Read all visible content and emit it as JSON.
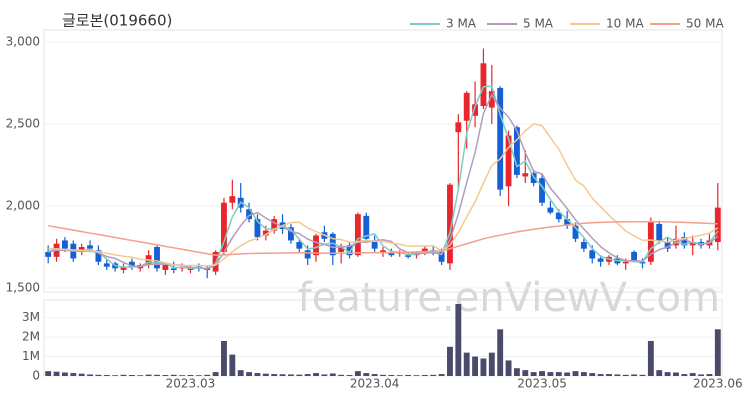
{
  "chart_data": {
    "type": "candlestick",
    "title": "글로본(019660)",
    "watermark": "feature.enViewV.com",
    "categories": [
      null,
      null,
      null,
      null,
      null,
      null,
      null,
      null,
      null,
      null,
      null,
      null,
      null,
      null,
      null,
      null,
      null,
      "2023.03",
      null,
      null,
      null,
      null,
      null,
      null,
      null,
      null,
      null,
      null,
      null,
      null,
      null,
      null,
      null,
      null,
      null,
      null,
      null,
      null,
      null,
      "2023.04",
      null,
      null,
      null,
      null,
      null,
      null,
      null,
      null,
      null,
      null,
      null,
      null,
      null,
      null,
      null,
      null,
      null,
      null,
      null,
      "2023.05",
      null,
      null,
      null,
      null,
      null,
      null,
      null,
      null,
      null,
      null,
      null,
      null,
      null,
      null,
      null,
      null,
      null,
      null,
      null,
      null,
      "2023.06"
    ],
    "open": [
      1720,
      1690,
      1790,
      1770,
      1720,
      1760,
      1730,
      1650,
      1650,
      1610,
      1660,
      1620,
      1640,
      1750,
      1610,
      1620,
      1620,
      1610,
      1630,
      1620,
      1600,
      1720,
      2020,
      2050,
      1980,
      1920,
      1820,
      1850,
      1900,
      1870,
      1780,
      1730,
      1700,
      1840,
      1830,
      1720,
      1760,
      1700,
      1940,
      1790,
      1720,
      1720,
      1710,
      1700,
      1700,
      1720,
      1730,
      1720,
      1650,
      2450,
      2520,
      2550,
      2610,
      2600,
      2720,
      2120,
      2480,
      2180,
      2200,
      2170,
      1990,
      1960,
      1920,
      1880,
      1780,
      1730,
      1680,
      1660,
      1680,
      1650,
      1720,
      1660,
      1660,
      1890,
      1780,
      1760,
      1810,
      1760,
      1780,
      1760,
      1780
    ],
    "high": [
      1760,
      1800,
      1810,
      1790,
      1770,
      1790,
      1760,
      1680,
      1660,
      1650,
      1680,
      1650,
      1730,
      1760,
      1650,
      1660,
      1650,
      1640,
      1650,
      1640,
      1730,
      2050,
      2160,
      2140,
      2020,
      1950,
      1880,
      1940,
      1950,
      1890,
      1800,
      1760,
      1830,
      1880,
      1840,
      1770,
      1780,
      1960,
      1960,
      1820,
      1750,
      1740,
      1730,
      1720,
      1720,
      1760,
      1760,
      1740,
      2140,
      2560,
      2700,
      2760,
      2960,
      2860,
      2730,
      2460,
      2490,
      2340,
      2220,
      2200,
      2030,
      1980,
      1970,
      1900,
      1800,
      1760,
      1700,
      1700,
      1700,
      1680,
      1730,
      1680,
      1930,
      1910,
      1810,
      1880,
      1840,
      1820,
      1800,
      1830,
      2140
    ],
    "low": [
      1650,
      1660,
      1720,
      1660,
      1700,
      1720,
      1640,
      1610,
      1600,
      1590,
      1610,
      1600,
      1620,
      1600,
      1580,
      1590,
      1600,
      1590,
      1600,
      1560,
      1580,
      1700,
      1980,
      1960,
      1900,
      1790,
      1790,
      1830,
      1830,
      1770,
      1720,
      1640,
      1660,
      1780,
      1640,
      1650,
      1680,
      1690,
      1780,
      1720,
      1690,
      1690,
      1690,
      1680,
      1680,
      1700,
      1700,
      1640,
      1610,
      2100,
      2350,
      2480,
      2590,
      2500,
      2060,
      2000,
      2170,
      2140,
      2120,
      2000,
      1950,
      1900,
      1860,
      1780,
      1720,
      1650,
      1630,
      1640,
      1640,
      1610,
      1660,
      1620,
      1640,
      1770,
      1720,
      1740,
      1740,
      1700,
      1740,
      1740,
      1730
    ],
    "close": [
      1690,
      1770,
      1740,
      1680,
      1750,
      1740,
      1660,
      1630,
      1620,
      1630,
      1630,
      1640,
      1700,
      1620,
      1640,
      1610,
      1630,
      1620,
      1620,
      1610,
      1720,
      2020,
      2060,
      1990,
      1920,
      1810,
      1850,
      1920,
      1860,
      1790,
      1740,
      1680,
      1820,
      1800,
      1700,
      1750,
      1700,
      1950,
      1800,
      1740,
      1730,
      1700,
      1720,
      1690,
      1710,
      1740,
      1720,
      1660,
      2130,
      2510,
      2690,
      2620,
      2870,
      2700,
      2100,
      2430,
      2190,
      2200,
      2140,
      2020,
      1960,
      1920,
      1880,
      1800,
      1740,
      1680,
      1660,
      1690,
      1650,
      1660,
      1670,
      1650,
      1900,
      1790,
      1740,
      1800,
      1760,
      1780,
      1760,
      1790,
      1990
    ],
    "up_color": "#e8262d",
    "down_color": "#1560d6",
    "series": [
      {
        "name": "3 MA",
        "color": "#7ecdc4",
        "values": [
          1720,
          1740,
          1733,
          1730,
          1723,
          1723,
          1717,
          1677,
          1637,
          1627,
          1627,
          1633,
          1657,
          1653,
          1653,
          1623,
          1627,
          1620,
          1623,
          1617,
          1650,
          1783,
          1933,
          2023,
          1990,
          1907,
          1860,
          1860,
          1877,
          1857,
          1797,
          1737,
          1747,
          1767,
          1773,
          1750,
          1717,
          1800,
          1817,
          1830,
          1757,
          1723,
          1717,
          1703,
          1707,
          1713,
          1723,
          1707,
          1837,
          2100,
          2443,
          2607,
          2727,
          2730,
          2557,
          2410,
          2240,
          2273,
          2177,
          2120,
          2040,
          1967,
          1920,
          1867,
          1807,
          1740,
          1693,
          1677,
          1667,
          1667,
          1660,
          1660,
          1740,
          1780,
          1810,
          1777,
          1767,
          1780,
          1767,
          1777,
          1847
        ]
      },
      {
        "name": "5 MA",
        "color": "#b49cc0",
        "values": [
          1720,
          1730,
          1730,
          1725,
          1726,
          1736,
          1714,
          1692,
          1680,
          1656,
          1634,
          1630,
          1644,
          1644,
          1646,
          1642,
          1640,
          1624,
          1624,
          1618,
          1640,
          1718,
          1806,
          1880,
          1942,
          1960,
          1926,
          1898,
          1872,
          1846,
          1832,
          1798,
          1778,
          1766,
          1748,
          1750,
          1754,
          1780,
          1780,
          1788,
          1794,
          1784,
          1738,
          1716,
          1710,
          1712,
          1716,
          1704,
          1792,
          1952,
          2142,
          2326,
          2564,
          2678,
          2596,
          2542,
          2458,
          2324,
          2212,
          2196,
          2108,
          2048,
          1984,
          1916,
          1860,
          1804,
          1752,
          1714,
          1684,
          1668,
          1666,
          1664,
          1706,
          1734,
          1750,
          1776,
          1798,
          1774,
          1768,
          1774,
          1816
        ]
      },
      {
        "name": "10 MA",
        "color": "#f4c98f",
        "values": [
          1740,
          1738,
          1735,
          1732,
          1730,
          1728,
          1722,
          1712,
          1702,
          1694,
          1688,
          1675,
          1671,
          1665,
          1654,
          1641,
          1638,
          1637,
          1637,
          1635,
          1640,
          1678,
          1721,
          1758,
          1786,
          1804,
          1826,
          1856,
          1881,
          1899,
          1901,
          1867,
          1843,
          1823,
          1801,
          1795,
          1780,
          1783,
          1790,
          1785,
          1784,
          1774,
          1766,
          1755,
          1756,
          1755,
          1757,
          1728,
          1761,
          1838,
          1933,
          2025,
          2140,
          2248,
          2287,
          2357,
          2404,
          2458,
          2501,
          2490,
          2417,
          2347,
          2248,
          2158,
          2122,
          2048,
          1995,
          1944,
          1895,
          1847,
          1818,
          1791,
          1793,
          1786,
          1780,
          1792,
          1802,
          1811,
          1822,
          1835,
          1867
        ]
      },
      {
        "name": "50 MA",
        "color": "#f4a08c",
        "values": [
          1880,
          1871,
          1862,
          1853,
          1844,
          1835,
          1826,
          1817,
          1808,
          1799,
          1790,
          1781,
          1772,
          1763,
          1754,
          1745,
          1736,
          1727,
          1718,
          1709,
          1700,
          1702,
          1705,
          1708,
          1710,
          1712,
          1712,
          1713,
          1714,
          1714,
          1715,
          1714,
          1713,
          1713,
          1712,
          1712,
          1712,
          1714,
          1715,
          1716,
          1716,
          1716,
          1717,
          1718,
          1720,
          1722,
          1724,
          1726,
          1740,
          1755,
          1770,
          1785,
          1800,
          1812,
          1822,
          1832,
          1842,
          1850,
          1858,
          1865,
          1872,
          1878,
          1884,
          1890,
          1895,
          1898,
          1900,
          1902,
          1903,
          1903,
          1904,
          1904,
          1904,
          1903,
          1903,
          1902,
          1900,
          1898,
          1896,
          1894,
          1892
        ]
      }
    ],
    "ylim": [
      1500,
      3000
    ],
    "yticks": [
      {
        "value": 1500,
        "label": "1,500"
      },
      {
        "value": 2000,
        "label": "2,000"
      },
      {
        "value": 2500,
        "label": "2,500"
      },
      {
        "value": 3000,
        "label": "3,000"
      }
    ],
    "volume": {
      "color": "#4a4a6a",
      "ylim": [
        0,
        3700000
      ],
      "yticks": [
        0,
        {
          "value": 1000000,
          "label": "1M"
        },
        {
          "value": 2000000,
          "label": "2M"
        },
        {
          "value": 3000000,
          "label": "3M"
        }
      ],
      "values": [
        250000,
        220000,
        180000,
        150000,
        120000,
        80000,
        60000,
        50000,
        40000,
        60000,
        50000,
        40000,
        70000,
        60000,
        50000,
        60000,
        40000,
        50000,
        40000,
        60000,
        200000,
        1800000,
        1100000,
        300000,
        200000,
        150000,
        120000,
        100000,
        90000,
        80000,
        70000,
        100000,
        150000,
        80000,
        130000,
        60000,
        50000,
        250000,
        150000,
        100000,
        60000,
        50000,
        40000,
        50000,
        40000,
        50000,
        60000,
        100000,
        1500000,
        3700000,
        1200000,
        1000000,
        900000,
        1200000,
        2400000,
        800000,
        400000,
        300000,
        200000,
        250000,
        200000,
        200000,
        180000,
        250000,
        200000,
        150000,
        100000,
        100000,
        80000,
        60000,
        80000,
        60000,
        1800000,
        300000,
        200000,
        180000,
        100000,
        150000,
        80000,
        100000,
        2400000
      ]
    }
  }
}
